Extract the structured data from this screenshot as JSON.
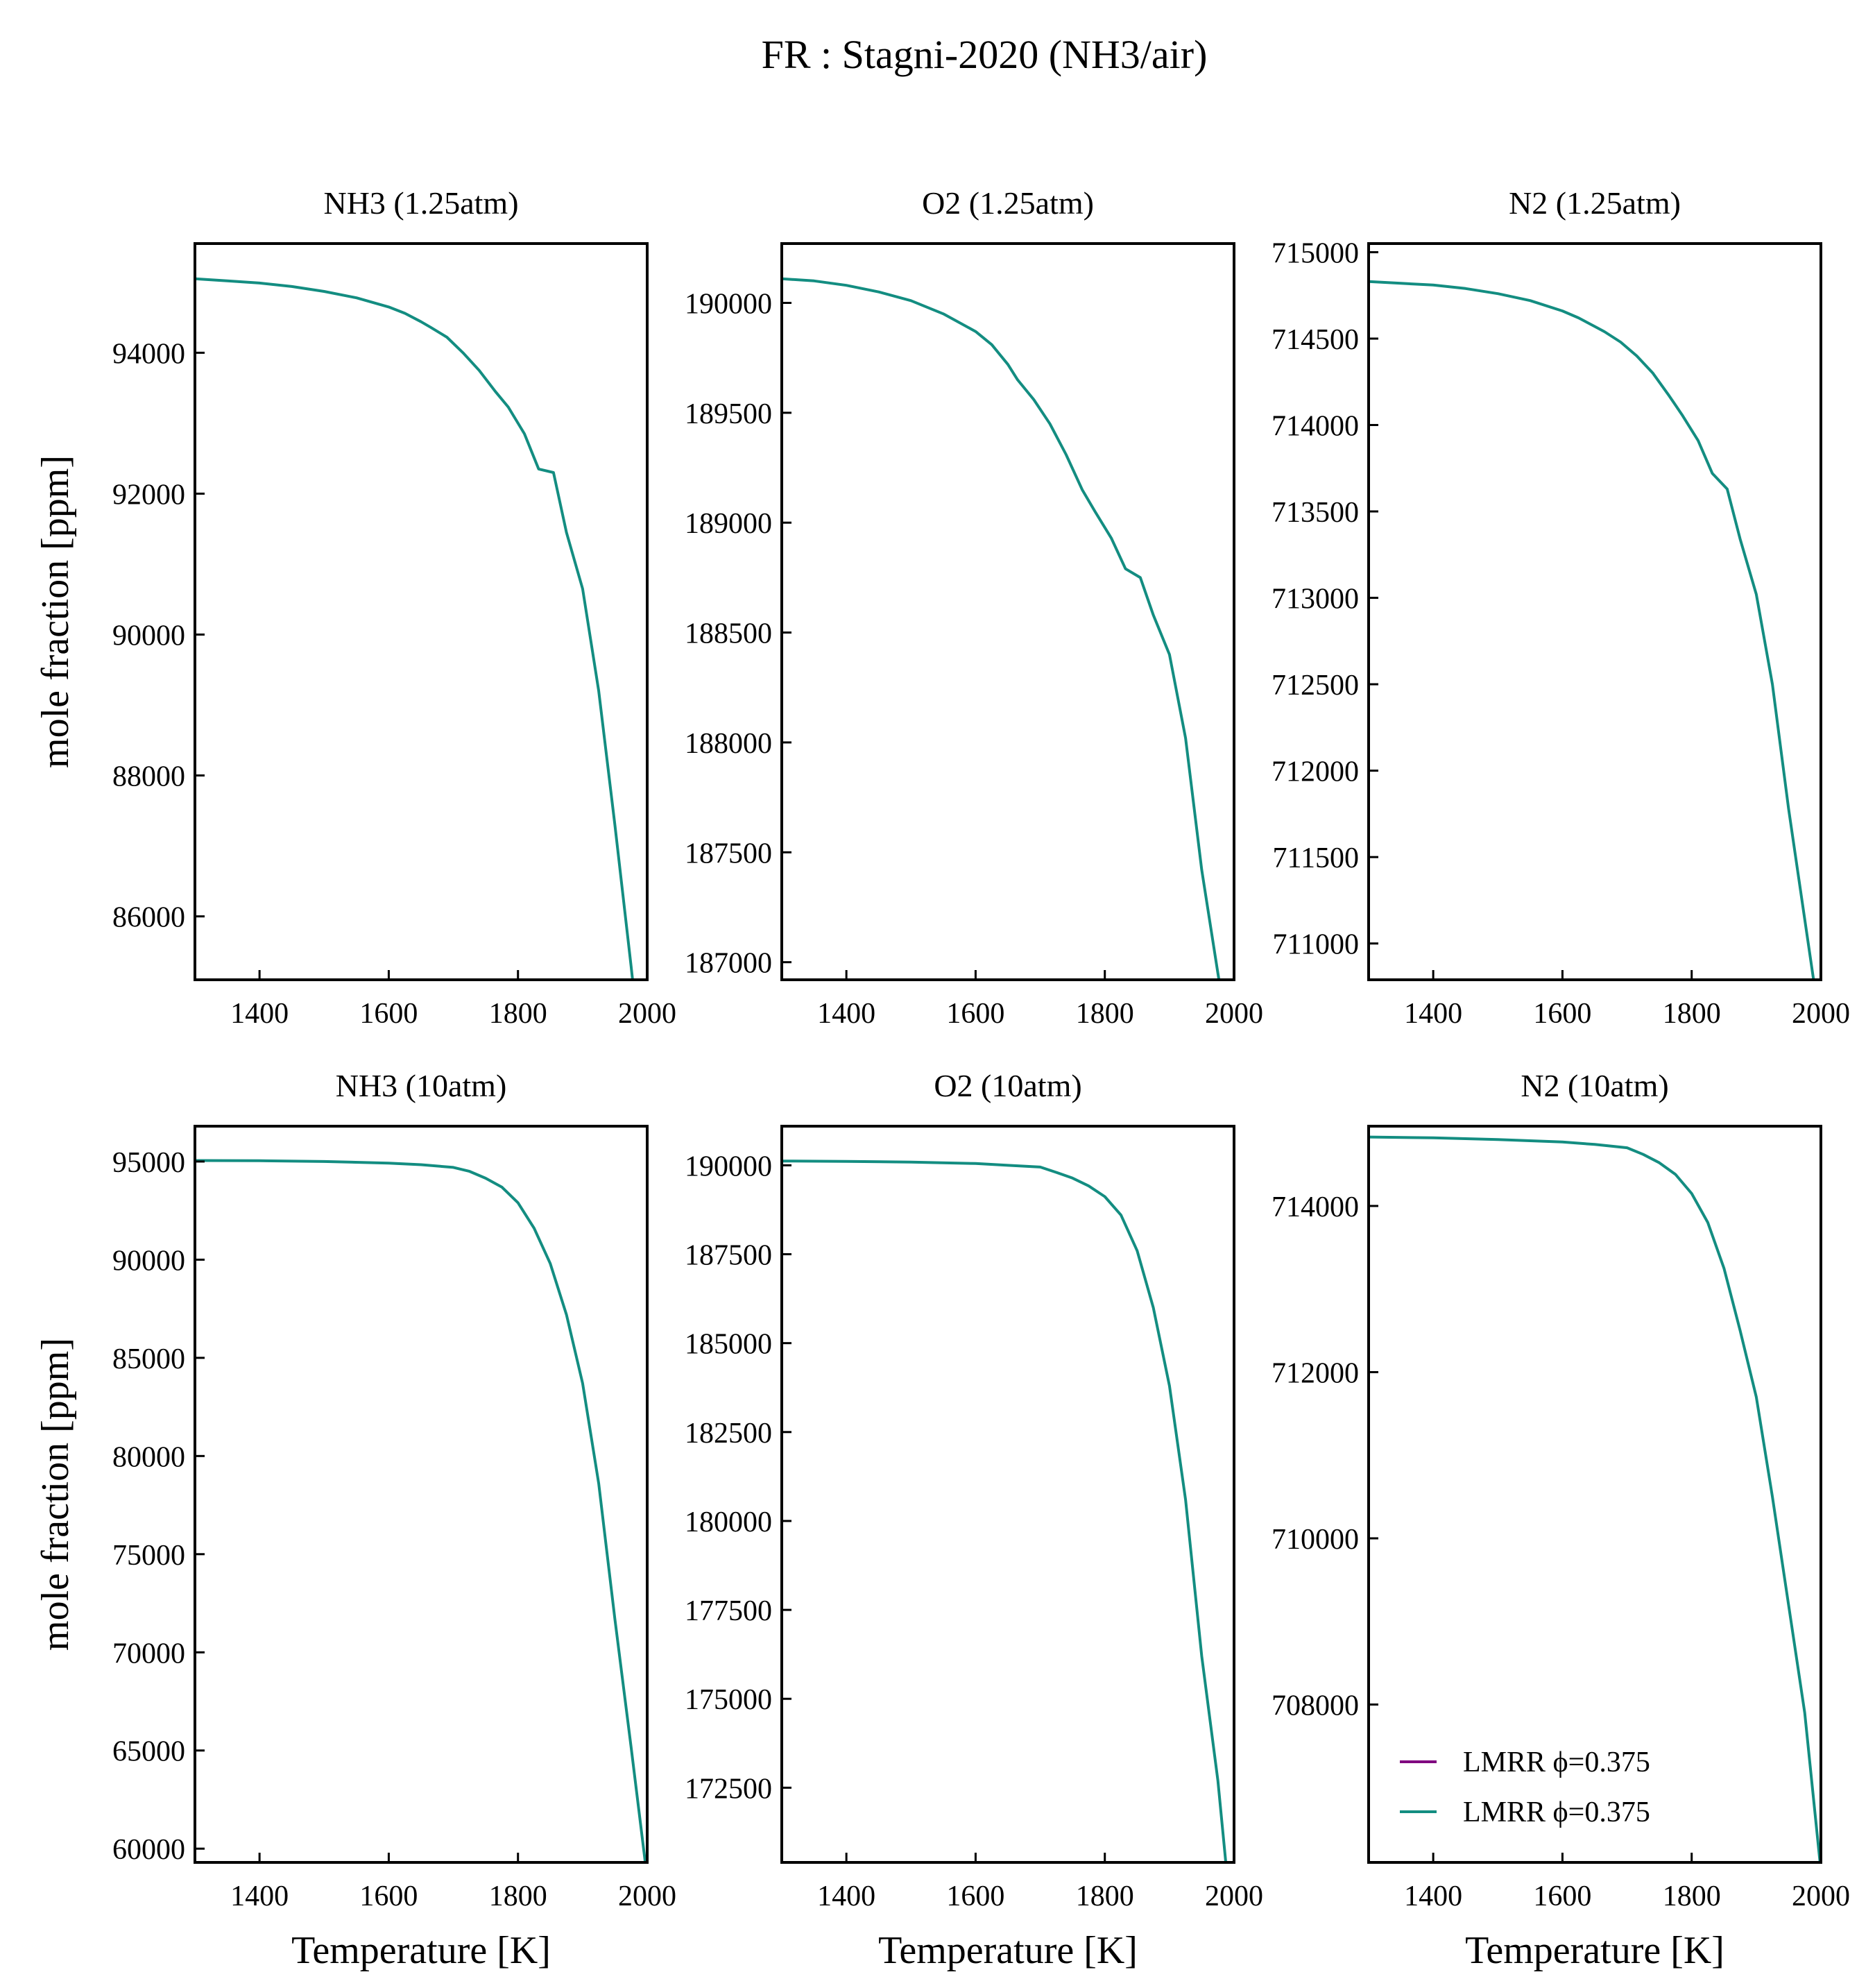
{
  "figure": {
    "suptitle": "FR : Stagni-2020 (NH3/air)",
    "line_color": "#138d81",
    "legend_colors": [
      "#800080",
      "#138d81"
    ]
  },
  "chart_data": [
    {
      "type": "line",
      "title": "NH3 (1.25atm)",
      "xlabel": "",
      "ylabel": "mole fraction [ppm]",
      "xlim": [
        1300,
        2000
      ],
      "ylim": [
        85100,
        95550
      ],
      "xticks": [
        1400,
        1600,
        1800,
        2000
      ],
      "xtick_labels": [
        "1400",
        "1600",
        "1800",
        "2000"
      ],
      "yticks": [
        86000,
        88000,
        90000,
        92000,
        94000
      ],
      "ytick_labels": [
        "86000",
        "88000",
        "90000",
        "92000",
        "94000"
      ],
      "legend": null,
      "series": [
        {
          "color": "#138d81",
          "x": [
            1300,
            1350,
            1400,
            1450,
            1500,
            1550,
            1600,
            1625,
            1650,
            1665,
            1690,
            1715,
            1740,
            1765,
            1785,
            1810,
            1832,
            1855,
            1875,
            1900,
            1925,
            1950,
            1975,
            2000
          ],
          "y": [
            95050,
            95020,
            94990,
            94940,
            94870,
            94780,
            94650,
            94560,
            94440,
            94360,
            94220,
            94000,
            93750,
            93450,
            93230,
            92850,
            92350,
            92300,
            91450,
            90650,
            89200,
            87300,
            85300,
            83200
          ]
        }
      ]
    },
    {
      "type": "line",
      "title": "O2 (1.25atm)",
      "xlabel": "",
      "ylabel": "",
      "xlim": [
        1300,
        2000
      ],
      "ylim": [
        186920,
        190270
      ],
      "xticks": [
        1400,
        1600,
        1800,
        2000
      ],
      "xtick_labels": [
        "1400",
        "1600",
        "1800",
        "2000"
      ],
      "yticks": [
        187000,
        187500,
        188000,
        188500,
        189000,
        189500,
        190000
      ],
      "ytick_labels": [
        "187000",
        "187500",
        "188000",
        "188500",
        "189000",
        "189500",
        "190000"
      ],
      "legend": null,
      "series": [
        {
          "color": "#138d81",
          "x": [
            1300,
            1350,
            1400,
            1450,
            1500,
            1550,
            1600,
            1625,
            1650,
            1665,
            1690,
            1715,
            1740,
            1765,
            1785,
            1810,
            1832,
            1855,
            1875,
            1900,
            1925,
            1950,
            1975,
            2000
          ],
          "y": [
            190110,
            190100,
            190080,
            190050,
            190010,
            189950,
            189870,
            189810,
            189720,
            189650,
            189560,
            189450,
            189310,
            189150,
            189050,
            188930,
            188790,
            188750,
            188580,
            188400,
            188020,
            187420,
            186950,
            186500
          ]
        }
      ]
    },
    {
      "type": "line",
      "title": "N2 (1.25atm)",
      "xlabel": "",
      "ylabel": "",
      "xlim": [
        1300,
        2000
      ],
      "ylim": [
        710790,
        715050
      ],
      "xticks": [
        1400,
        1600,
        1800,
        2000
      ],
      "xtick_labels": [
        "1400",
        "1600",
        "1800",
        "2000"
      ],
      "yticks": [
        711000,
        711500,
        712000,
        712500,
        713000,
        713500,
        714000,
        714500,
        715000
      ],
      "ytick_labels": [
        "711000",
        "711500",
        "712000",
        "712500",
        "713000",
        "713500",
        "714000",
        "714500",
        "715000"
      ],
      "legend": null,
      "series": [
        {
          "color": "#138d81",
          "x": [
            1300,
            1350,
            1400,
            1450,
            1500,
            1550,
            1600,
            1625,
            1650,
            1665,
            1690,
            1715,
            1740,
            1765,
            1785,
            1810,
            1832,
            1855,
            1875,
            1900,
            1925,
            1950,
            1975,
            2000
          ],
          "y": [
            714830,
            714820,
            714810,
            714790,
            714760,
            714720,
            714660,
            714620,
            714570,
            714540,
            714480,
            714400,
            714300,
            714170,
            714060,
            713910,
            713720,
            713630,
            713340,
            713020,
            712500,
            711780,
            711140,
            710500
          ]
        }
      ]
    },
    {
      "type": "line",
      "title": "NH3 (10atm)",
      "xlabel": "Temperature [K]",
      "ylabel": "mole fraction [ppm]",
      "xlim": [
        1300,
        2000
      ],
      "ylim": [
        59300,
        96800
      ],
      "xticks": [
        1400,
        1600,
        1800,
        2000
      ],
      "xtick_labels": [
        "1400",
        "1600",
        "1800",
        "2000"
      ],
      "yticks": [
        60000,
        65000,
        70000,
        75000,
        80000,
        85000,
        90000,
        95000
      ],
      "ytick_labels": [
        "60000",
        "65000",
        "70000",
        "75000",
        "80000",
        "85000",
        "90000",
        "95000"
      ],
      "legend": null,
      "series": [
        {
          "color": "#138d81",
          "x": [
            1300,
            1400,
            1500,
            1600,
            1650,
            1700,
            1725,
            1750,
            1775,
            1800,
            1825,
            1850,
            1875,
            1900,
            1925,
            1950,
            1975,
            2000
          ],
          "y": [
            95050,
            95040,
            95000,
            94920,
            94840,
            94700,
            94500,
            94150,
            93700,
            92900,
            91600,
            89800,
            87200,
            83700,
            78600,
            71700,
            65200,
            58500
          ]
        }
      ]
    },
    {
      "type": "line",
      "title": "O2 (10atm)",
      "xlabel": "Temperature [K]",
      "ylabel": "",
      "xlim": [
        1300,
        2000
      ],
      "ylim": [
        170400,
        191100
      ],
      "xticks": [
        1400,
        1600,
        1800,
        2000
      ],
      "xtick_labels": [
        "1400",
        "1600",
        "1800",
        "2000"
      ],
      "yticks": [
        172500,
        175000,
        177500,
        180000,
        182500,
        185000,
        187500,
        190000
      ],
      "ytick_labels": [
        "172500",
        "175000",
        "177500",
        "180000",
        "182500",
        "185000",
        "187500",
        "190000"
      ],
      "legend": null,
      "series": [
        {
          "color": "#138d81",
          "x": [
            1300,
            1400,
            1500,
            1600,
            1650,
            1700,
            1725,
            1750,
            1775,
            1800,
            1825,
            1850,
            1875,
            1900,
            1925,
            1950,
            1975,
            2000
          ],
          "y": [
            190120,
            190110,
            190090,
            190050,
            190000,
            189950,
            189800,
            189640,
            189420,
            189120,
            188600,
            187600,
            186000,
            183800,
            180600,
            176200,
            172700,
            168000
          ]
        }
      ]
    },
    {
      "type": "line",
      "title": "N2 (10atm)",
      "xlabel": "Temperature [K]",
      "ylabel": "",
      "xlim": [
        1300,
        2000
      ],
      "ylim": [
        706100,
        714960
      ],
      "xticks": [
        1400,
        1600,
        1800,
        2000
      ],
      "xtick_labels": [
        "1400",
        "1600",
        "1800",
        "2000"
      ],
      "yticks": [
        708000,
        710000,
        712000,
        714000
      ],
      "ytick_labels": [
        "708000",
        "710000",
        "712000",
        "714000"
      ],
      "legend": {
        "placement": "lower-left",
        "entries": [
          {
            "label": "LMRR ϕ=0.375",
            "color": "#800080"
          },
          {
            "label": "LMRR ϕ=0.375",
            "color": "#138d81"
          }
        ]
      },
      "series": [
        {
          "color": "#138d81",
          "x": [
            1300,
            1400,
            1500,
            1600,
            1650,
            1700,
            1725,
            1750,
            1775,
            1800,
            1825,
            1850,
            1875,
            1900,
            1925,
            1950,
            1975,
            2000
          ],
          "y": [
            714830,
            714820,
            714800,
            714770,
            714740,
            714700,
            714620,
            714520,
            714380,
            714150,
            713800,
            713250,
            712500,
            711700,
            710500,
            709200,
            707900,
            706000
          ]
        }
      ]
    }
  ]
}
